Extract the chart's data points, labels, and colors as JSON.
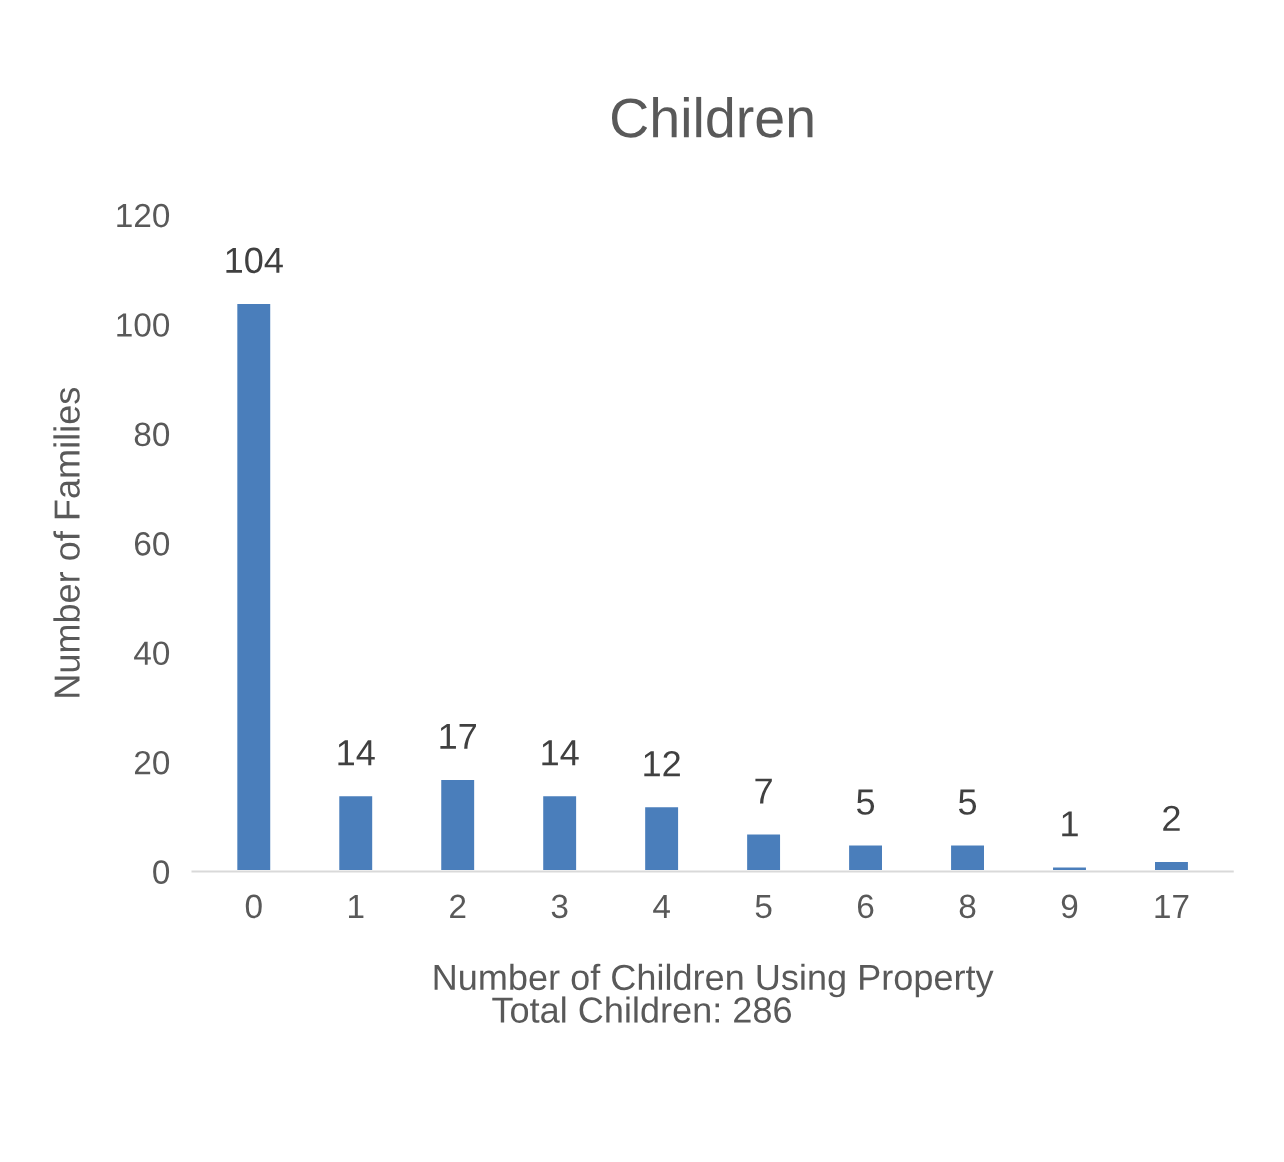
{
  "chart_data": {
    "type": "bar",
    "title": "Children",
    "xlabel": "Number of Children Using Property",
    "ylabel": "Number of Families",
    "annotations": [
      "Total Children: 286"
    ],
    "categories": [
      "0",
      "1",
      "2",
      "3",
      "4",
      "5",
      "6",
      "8",
      "9",
      "17"
    ],
    "values": [
      104,
      14,
      17,
      14,
      12,
      7,
      5,
      5,
      1,
      2
    ],
    "color": "#4a7ebb",
    "ylim": [
      0,
      120
    ],
    "yticks": [
      0,
      20,
      40,
      60,
      80,
      100,
      120
    ],
    "data_labels": true,
    "grid": false,
    "legend": false
  }
}
